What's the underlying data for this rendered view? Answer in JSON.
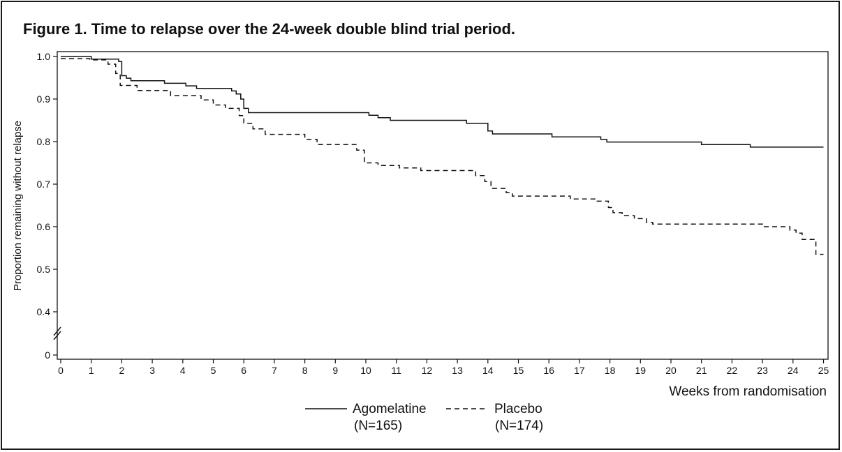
{
  "title": "Figure 1. Time to relapse over the 24-week double blind trial period.",
  "chart_data": {
    "type": "line",
    "title": "Figure 1. Time to relapse over the 24-week double blind trial period.",
    "xlabel": "Weeks from randomisation",
    "ylabel": "Proportion remaining without relapse",
    "xlim": [
      0,
      25
    ],
    "ylim": [
      0,
      1.0
    ],
    "axis_break": "between 0 and 0.4",
    "x_ticks": [
      "0",
      "1",
      "2",
      "3",
      "4",
      "5",
      "6",
      "7",
      "8",
      "9",
      "10",
      "11",
      "12",
      "13",
      "14",
      "15",
      "16",
      "17",
      "18",
      "19",
      "20",
      "21",
      "22",
      "23",
      "24",
      "25"
    ],
    "y_ticks": [
      "0",
      "0.4",
      "0.5",
      "0.6",
      "0.7",
      "0.8",
      "0.9",
      "1.0"
    ],
    "grid": false,
    "legend_position": "bottom",
    "series": [
      {
        "name": "Agomelatine",
        "n_label": "(N=165)",
        "style": "solid",
        "color": "#111111",
        "steps": [
          [
            0,
            1.0
          ],
          [
            1.0,
            0.994
          ],
          [
            1.9,
            0.988
          ],
          [
            2.0,
            0.955
          ],
          [
            2.15,
            0.949
          ],
          [
            2.3,
            0.943
          ],
          [
            3.4,
            0.937
          ],
          [
            4.1,
            0.931
          ],
          [
            4.45,
            0.925
          ],
          [
            5.6,
            0.919
          ],
          [
            5.75,
            0.912
          ],
          [
            5.9,
            0.9
          ],
          [
            6.0,
            0.878
          ],
          [
            6.15,
            0.868
          ],
          [
            10.1,
            0.862
          ],
          [
            10.4,
            0.856
          ],
          [
            10.8,
            0.85
          ],
          [
            13.3,
            0.843
          ],
          [
            14.0,
            0.825
          ],
          [
            14.15,
            0.818
          ],
          [
            16.1,
            0.811
          ],
          [
            17.7,
            0.805
          ],
          [
            17.9,
            0.799
          ],
          [
            21.0,
            0.793
          ],
          [
            22.6,
            0.787
          ],
          [
            25.0,
            0.787
          ]
        ]
      },
      {
        "name": "Placebo",
        "n_label": "(N=174)",
        "style": "dashed",
        "color": "#111111",
        "steps": [
          [
            0,
            0.995
          ],
          [
            0.95,
            0.992
          ],
          [
            1.55,
            0.982
          ],
          [
            1.8,
            0.96
          ],
          [
            1.95,
            0.932
          ],
          [
            2.5,
            0.92
          ],
          [
            3.6,
            0.908
          ],
          [
            4.6,
            0.898
          ],
          [
            5.0,
            0.886
          ],
          [
            5.4,
            0.878
          ],
          [
            5.85,
            0.861
          ],
          [
            6.0,
            0.843
          ],
          [
            6.3,
            0.83
          ],
          [
            6.7,
            0.817
          ],
          [
            8.0,
            0.805
          ],
          [
            8.4,
            0.793
          ],
          [
            9.7,
            0.78
          ],
          [
            9.95,
            0.75
          ],
          [
            10.4,
            0.744
          ],
          [
            11.1,
            0.738
          ],
          [
            11.8,
            0.732
          ],
          [
            13.6,
            0.72
          ],
          [
            13.9,
            0.706
          ],
          [
            14.1,
            0.69
          ],
          [
            14.6,
            0.68
          ],
          [
            14.8,
            0.672
          ],
          [
            16.7,
            0.665
          ],
          [
            17.5,
            0.66
          ],
          [
            17.95,
            0.645
          ],
          [
            18.1,
            0.633
          ],
          [
            18.4,
            0.626
          ],
          [
            18.8,
            0.619
          ],
          [
            19.2,
            0.61
          ],
          [
            19.4,
            0.606
          ],
          [
            23.0,
            0.6
          ],
          [
            23.9,
            0.592
          ],
          [
            24.1,
            0.585
          ],
          [
            24.3,
            0.57
          ],
          [
            24.75,
            0.535
          ],
          [
            25.0,
            0.535
          ]
        ]
      }
    ]
  }
}
